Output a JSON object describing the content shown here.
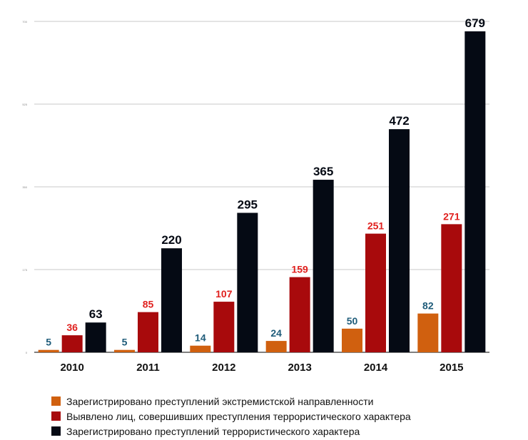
{
  "chart_data": {
    "type": "bar",
    "categories": [
      "2010",
      "2011",
      "2012",
      "2013",
      "2014",
      "2015"
    ],
    "series": [
      {
        "name": "Зарегистрировано преступлений экстремистской направленности",
        "values": [
          5,
          5,
          14,
          24,
          50,
          82
        ],
        "color": "#D0600F",
        "label_color": "#1F5C7A"
      },
      {
        "name": "Выявлено лиц, совершивших преступления террористического характера",
        "values": [
          36,
          85,
          107,
          159,
          251,
          271
        ],
        "color": "#A80A0C",
        "label_color": "#E0201E"
      },
      {
        "name": "Зарегистрировано преступлений террористического характера",
        "values": [
          63,
          220,
          295,
          365,
          472,
          679
        ],
        "color": "#050A14",
        "label_color": "#050A14"
      }
    ],
    "ylim": [
      0,
      700
    ],
    "yticks": [
      0,
      175,
      350,
      525,
      700
    ],
    "grid": true,
    "legend": "bottom-left"
  }
}
